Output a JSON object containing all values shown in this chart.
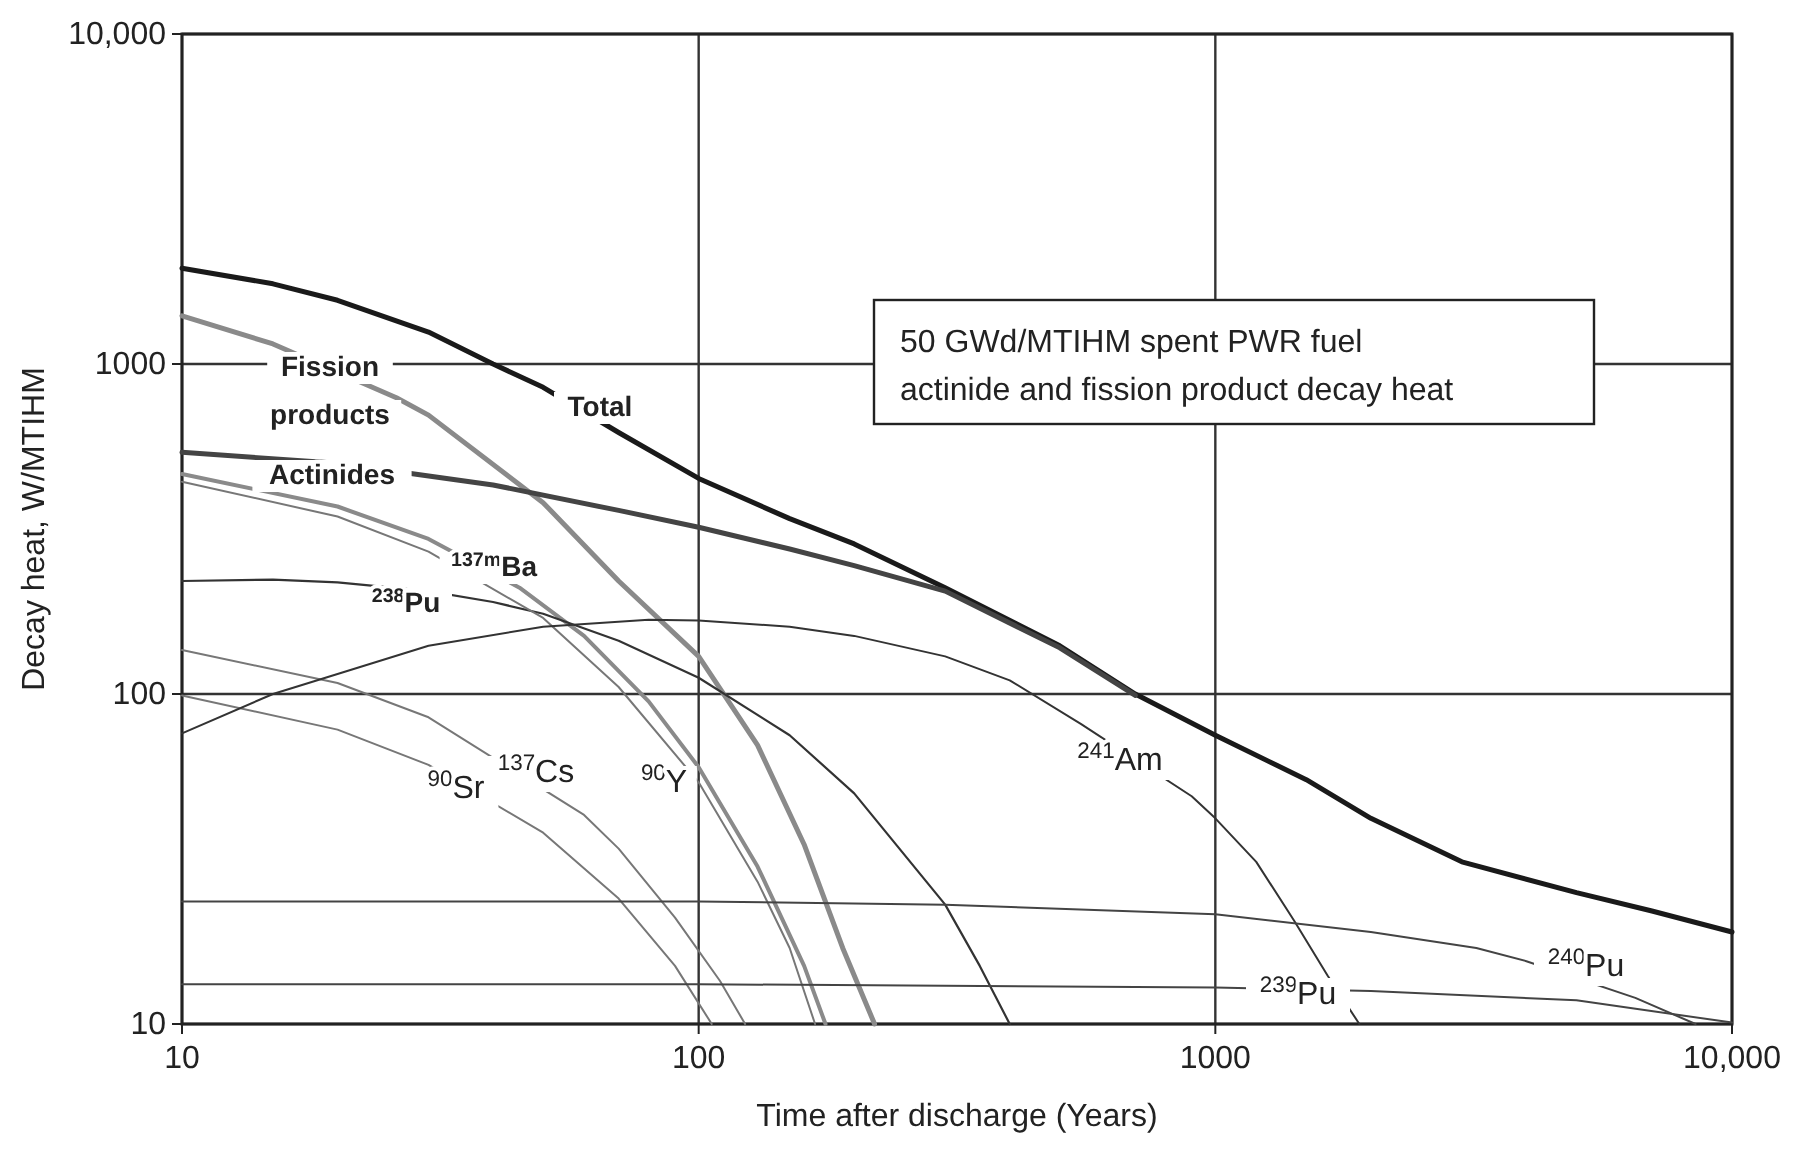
{
  "chart_data": {
    "type": "line",
    "xlabel": "Time after discharge (Years)",
    "ylabel": "Decay heat, W/MTIHM",
    "log": "xy",
    "grid": true,
    "legend": false,
    "line_style": "solid",
    "marker": "none",
    "xlim": [
      10,
      10000
    ],
    "xticks": [
      10,
      100,
      1000,
      {
        "value": 10000,
        "label": "10,000"
      }
    ],
    "ylim": [
      10,
      10000
    ],
    "yticks": [
      10,
      100,
      1000,
      {
        "value": 10000,
        "label": "10,000"
      }
    ],
    "annotations": [
      "50 GWd/MTIHM spent PWR fuel\nactinide and fission product decay heat"
    ],
    "series": [
      {
        "name": "Fission products",
        "color": "#8a8a8a",
        "x": [
          10,
          15,
          26,
          30,
          50,
          70,
          100,
          130,
          160,
          190,
          219
        ],
        "values": [
          1400,
          1150,
          790,
          700,
          380,
          220,
          130,
          70,
          35,
          17,
          10
        ]
      },
      {
        "name": "Total",
        "color": "#1a1a1a",
        "x": [
          10,
          15,
          20,
          30,
          40,
          50,
          70,
          100,
          150,
          200,
          300,
          500,
          700,
          1000,
          1500,
          2000,
          3000,
          5000,
          7000,
          10000
        ],
        "values": [
          1950,
          1750,
          1560,
          1250,
          1000,
          850,
          620,
          450,
          340,
          285,
          210,
          140,
          100,
          75,
          55,
          42,
          31,
          25,
          22,
          19
        ]
      },
      {
        "name": "Actinides",
        "color": "#444444",
        "x": [
          10,
          20,
          40,
          70,
          100,
          150,
          200,
          300,
          500,
          700
        ],
        "values": [
          540,
          500,
          430,
          360,
          320,
          275,
          245,
          205,
          138,
          99
        ]
      },
      {
        "name": "$^{137m}$Ba",
        "color": "#8a8a8a",
        "x": [
          10,
          20,
          30,
          45,
          60,
          80,
          100,
          130,
          160,
          176
        ],
        "values": [
          464,
          370,
          295,
          210,
          150,
          95,
          60,
          30,
          15,
          10
        ]
      },
      {
        "name": "$^{238}$Pu",
        "color": "#333333",
        "x": [
          10,
          15,
          20,
          30,
          40,
          50,
          70,
          100,
          150,
          200,
          300,
          350,
          400
        ],
        "values": [
          220,
          222,
          218,
          205,
          190,
          175,
          145,
          112,
          75,
          50,
          23,
          15,
          10
        ]
      },
      {
        "name": "$^{90}$Sr",
        "color": "#777777",
        "x": [
          10,
          20,
          30,
          50,
          70,
          90,
          106
        ],
        "values": [
          99,
          78,
          61,
          38,
          24,
          15,
          10
        ]
      },
      {
        "name": "$^{137}$Cs",
        "color": "#777777",
        "x": [
          10,
          20,
          30,
          60,
          70,
          90,
          110,
          123
        ],
        "values": [
          136,
          108,
          85,
          43,
          34,
          21,
          13.5,
          10
        ]
      },
      {
        "name": "$^{90}$Y",
        "color": "#777777",
        "x": [
          10,
          20,
          30,
          50,
          70,
          100,
          130,
          150,
          168
        ],
        "values": [
          440,
          345,
          270,
          170,
          105,
          54,
          27,
          17,
          10
        ]
      },
      {
        "name": "$^{241}$Am",
        "color": "#333333",
        "x": [
          10,
          15,
          20,
          30,
          50,
          80,
          100,
          150,
          200,
          300,
          400,
          550,
          900,
          1000,
          1200,
          1420,
          1650,
          1900
        ],
        "values": [
          76,
          100,
          115,
          140,
          160,
          168,
          167,
          160,
          150,
          130,
          110,
          81,
          49,
          42,
          31,
          20.6,
          14,
          10
        ]
      },
      {
        "name": "$^{240}$Pu",
        "color": "#444444",
        "x": [
          10,
          100,
          300,
          1000,
          2000,
          3200,
          4000,
          6500,
          8500
        ],
        "values": [
          23.5,
          23.5,
          23,
          21.5,
          19,
          17,
          15.5,
          12,
          10
        ]
      },
      {
        "name": "$^{239}$Pu",
        "color": "#444444",
        "x": [
          10,
          100,
          1000,
          2000,
          5000,
          10000
        ],
        "values": [
          13.2,
          13.2,
          12.9,
          12.6,
          11.8,
          10.1
        ]
      }
    ]
  }
}
